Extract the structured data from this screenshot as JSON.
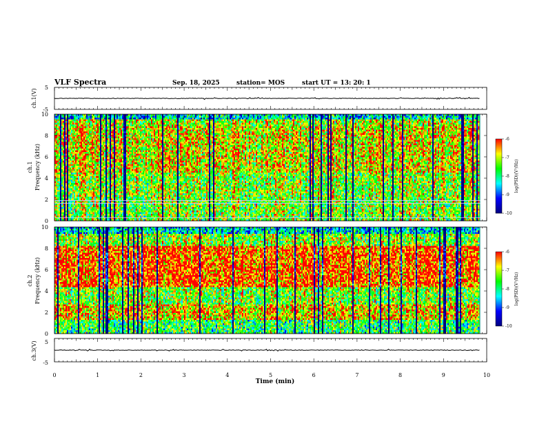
{
  "header": {
    "title": "VLF Spectra",
    "date": "Sep. 18, 2025",
    "station": "station= MOS",
    "start": "start  UT  =  13: 20: 1"
  },
  "colorbar": {
    "label": "log(PSD)(V²/Hz)",
    "ticks": [
      "-6",
      "-7",
      "-8",
      "-9",
      "-10"
    ],
    "stops": [
      "#ff0000",
      "#ffff00",
      "#00ff00",
      "#00ffff",
      "#0000ff",
      "#000080"
    ]
  },
  "chart_data": [
    {
      "type": "line",
      "name": "ch1-waveform",
      "ylabel": "ch.1(V)",
      "ylim": [
        -5,
        5
      ],
      "yticks": [
        "5",
        "-5"
      ],
      "xlim": [
        0,
        10
      ],
      "baseline_value": 0
    },
    {
      "type": "heatmap",
      "name": "ch1-spectrogram",
      "ylabel": "ch.1\nFrequency (kHz)",
      "ylim": [
        0,
        10
      ],
      "yticks": [
        "10",
        "8",
        "6",
        "4",
        "2",
        "0"
      ],
      "xlim": [
        0,
        9.85
      ],
      "zlim": [
        -10,
        -6
      ],
      "horizontal_lines_kHz": [
        0.3,
        1.65,
        1.9
      ]
    },
    {
      "type": "heatmap",
      "name": "ch2-spectrogram",
      "ylabel": "ch.2\nFrequency (kHz)",
      "ylim": [
        0,
        10
      ],
      "yticks": [
        "10",
        "8",
        "6",
        "4",
        "2",
        "0"
      ],
      "xlim": [
        0,
        9.85
      ],
      "zlim": [
        -10,
        -6
      ]
    },
    {
      "type": "line",
      "name": "ch3-waveform",
      "ylabel": "ch.3(V)",
      "ylim": [
        -5,
        5
      ],
      "yticks": [
        "5",
        "-5"
      ],
      "xlim": [
        0,
        10
      ],
      "baseline_value": 0
    }
  ],
  "xaxis": {
    "label": "Time  (min)",
    "ticks": [
      "0",
      "1",
      "2",
      "3",
      "4",
      "5",
      "6",
      "7",
      "8",
      "9",
      "10"
    ],
    "range": [
      0,
      10
    ]
  }
}
